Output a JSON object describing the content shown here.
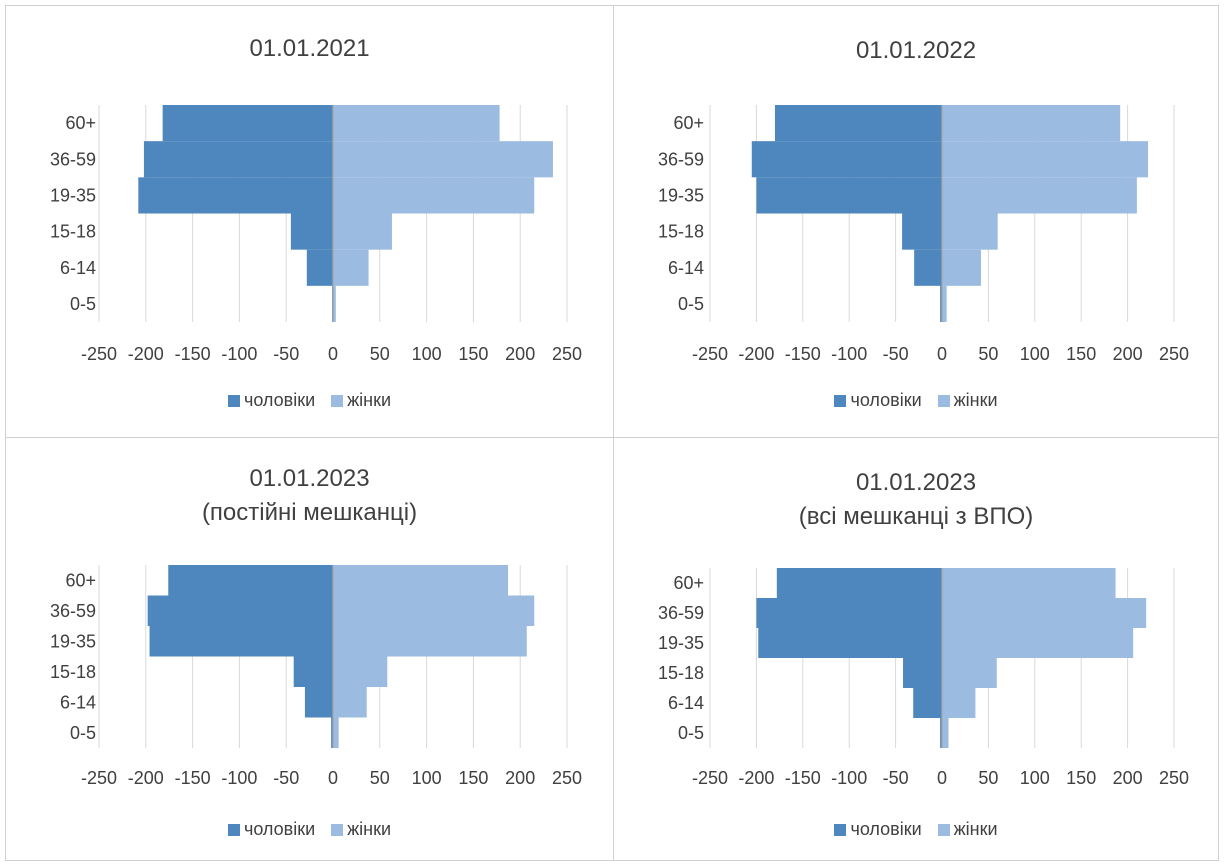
{
  "colors": {
    "male": "#4e86be",
    "female": "#9bbbe0",
    "grid": "#d9d9d9",
    "axis": "#a6a6a6"
  },
  "chart_data": [
    {
      "type": "bar",
      "title_lines": [
        "01.01.2021"
      ],
      "categories": [
        "0-5",
        "6-14",
        "15-18",
        "19-35",
        "36-59",
        "60+"
      ],
      "xlim": [
        -250,
        250
      ],
      "xticks": [
        "-250",
        "-200",
        "-150",
        "-100",
        "-50",
        "0",
        "50",
        "100",
        "150",
        "200",
        "250"
      ],
      "series": [
        {
          "name": "чоловіки",
          "values": [
            -1,
            -28,
            -45,
            -208,
            -202,
            -182
          ]
        },
        {
          "name": "жінки",
          "values": [
            3,
            38,
            63,
            215,
            235,
            178
          ]
        }
      ],
      "legend_position": "bottom",
      "grid": true
    },
    {
      "type": "bar",
      "title_lines": [
        "01.01.2022"
      ],
      "categories": [
        "0-5",
        "6-14",
        "15-18",
        "19-35",
        "36-59",
        "60+"
      ],
      "xlim": [
        -250,
        250
      ],
      "xticks": [
        "-250",
        "-200",
        "-150",
        "-100",
        "-50",
        "0",
        "50",
        "100",
        "150",
        "200",
        "250"
      ],
      "series": [
        {
          "name": "чоловіки",
          "values": [
            -2,
            -30,
            -43,
            -200,
            -205,
            -180
          ]
        },
        {
          "name": "жінки",
          "values": [
            5,
            42,
            60,
            210,
            222,
            192
          ]
        }
      ],
      "legend_position": "bottom",
      "grid": true
    },
    {
      "type": "bar",
      "title_lines": [
        "01.01.2023",
        "(постійні мешканці)"
      ],
      "categories": [
        "0-5",
        "6-14",
        "15-18",
        "19-35",
        "36-59",
        "60+"
      ],
      "xlim": [
        -250,
        250
      ],
      "xticks": [
        "-250",
        "-200",
        "-150",
        "-100",
        "-50",
        "0",
        "50",
        "100",
        "150",
        "200",
        "250"
      ],
      "series": [
        {
          "name": "чоловіки",
          "values": [
            -2,
            -30,
            -42,
            -196,
            -198,
            -176
          ]
        },
        {
          "name": "жінки",
          "values": [
            6,
            36,
            58,
            207,
            215,
            187
          ]
        }
      ],
      "legend_position": "bottom",
      "grid": true
    },
    {
      "type": "bar",
      "title_lines": [
        "01.01.2023",
        "(всі мешканці з ВПО)"
      ],
      "categories": [
        "0-5",
        "6-14",
        "15-18",
        "19-35",
        "36-59",
        "60+"
      ],
      "xlim": [
        -250,
        250
      ],
      "xticks": [
        "-250",
        "-200",
        "-150",
        "-100",
        "-50",
        "0",
        "50",
        "100",
        "150",
        "200",
        "250"
      ],
      "series": [
        {
          "name": "чоловіки",
          "values": [
            -2,
            -31,
            -42,
            -198,
            -200,
            -178
          ]
        },
        {
          "name": "жінки",
          "values": [
            7,
            36,
            59,
            206,
            220,
            187
          ]
        }
      ],
      "legend_position": "bottom",
      "grid": true
    }
  ]
}
